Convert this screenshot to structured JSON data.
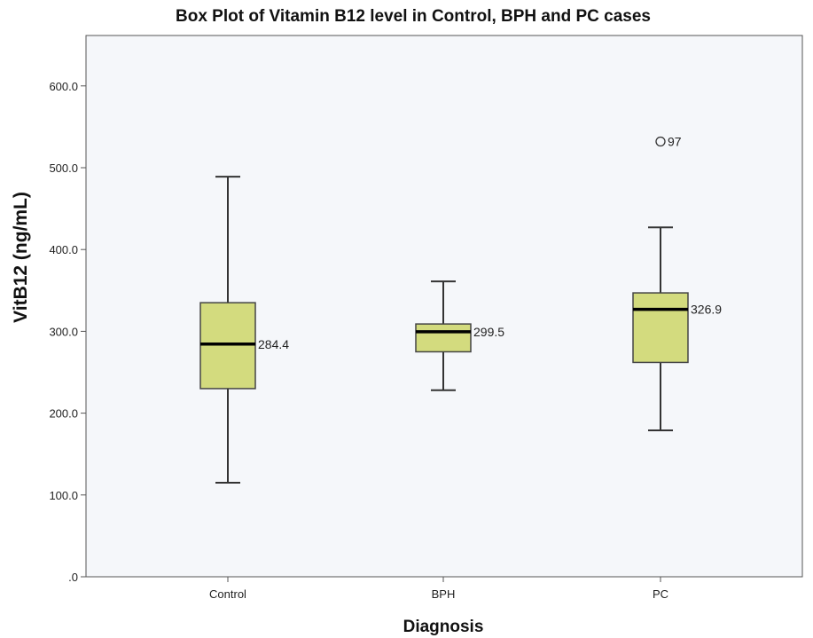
{
  "chart_data": {
    "type": "box",
    "title": "Box Plot of Vitamin B12 level in Control, BPH and PC cases",
    "xlabel": "Diagnosis",
    "ylabel": "VitB12 (ng/mL)",
    "ylim": [
      0,
      650
    ],
    "yticks": [
      0,
      100,
      200,
      300,
      400,
      500,
      600
    ],
    "ytick_labels": [
      ".0",
      "100.0",
      "200.0",
      "300.0",
      "400.0",
      "500.0",
      "600.0"
    ],
    "categories": [
      "Control",
      "BPH",
      "PC"
    ],
    "boxes": [
      {
        "name": "Control",
        "min": 115,
        "q1": 230,
        "median": 284.4,
        "q3": 335,
        "max": 489,
        "median_label": "284.4",
        "outliers": []
      },
      {
        "name": "BPH",
        "min": 228,
        "q1": 275,
        "median": 299.5,
        "q3": 309,
        "max": 361,
        "median_label": "299.5",
        "outliers": []
      },
      {
        "name": "PC",
        "min": 179,
        "q1": 262,
        "median": 326.9,
        "q3": 347,
        "max": 427,
        "median_label": "326.9",
        "outliers": [
          {
            "value": 532,
            "label": "97"
          }
        ]
      }
    ],
    "colors": {
      "box_fill": "#d3db7e",
      "plot_bg": "#f5f7fa",
      "line": "#333333"
    },
    "grid": false,
    "legend": "none"
  }
}
